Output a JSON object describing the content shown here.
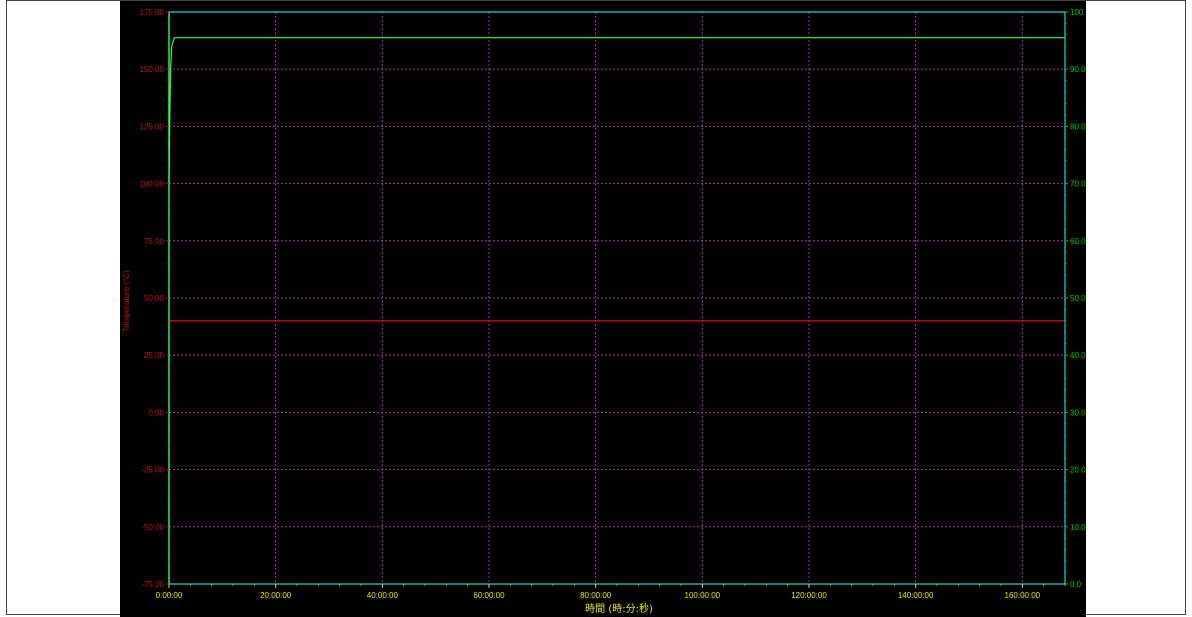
{
  "chart_data": {
    "type": "line",
    "ylabel_left": "Temperature (°C)",
    "xlabel": "時間 (時:分:秒)",
    "x_ticks": [
      "0:00:00",
      "20:00:00",
      "40:00:00",
      "60:00:00",
      "80:00:00",
      "100:00:00",
      "120:00:00",
      "140:00:00",
      "160:00:00"
    ],
    "x_range_hours": [
      0,
      168
    ],
    "y_left_ticks": [
      "-75.00",
      "-50.00",
      "-25.00",
      "0.00",
      "25.00",
      "50.00",
      "75.00",
      "100.00",
      "125.00",
      "150.00",
      "175.00"
    ],
    "y_left_range": [
      -75,
      175
    ],
    "y_right_ticks": [
      "0.0",
      "10.0",
      "20.0",
      "30.0",
      "40.0",
      "50.0",
      "60.0",
      "70.0",
      "80.0",
      "90.0",
      "100.0"
    ],
    "y_right_range": [
      0,
      100
    ],
    "grid": true,
    "series": [
      {
        "axis": "left",
        "color": "#dd1111",
        "x_hours": [
          0,
          168
        ],
        "y": [
          40,
          40
        ]
      },
      {
        "axis": "right",
        "color": "#33ff33",
        "x_hours": [
          0,
          0.15,
          0.3,
          0.5,
          1,
          2,
          168
        ],
        "y": [
          70,
          82,
          90,
          94,
          95.5,
          95.5,
          95.5
        ]
      }
    ],
    "colors": {
      "background": "#000000",
      "grid": "#cc33cc",
      "frame": "#33cccc",
      "left_axis": "#cc1111",
      "right_axis": "#00cc00",
      "x_axis": "#e6e600"
    }
  }
}
